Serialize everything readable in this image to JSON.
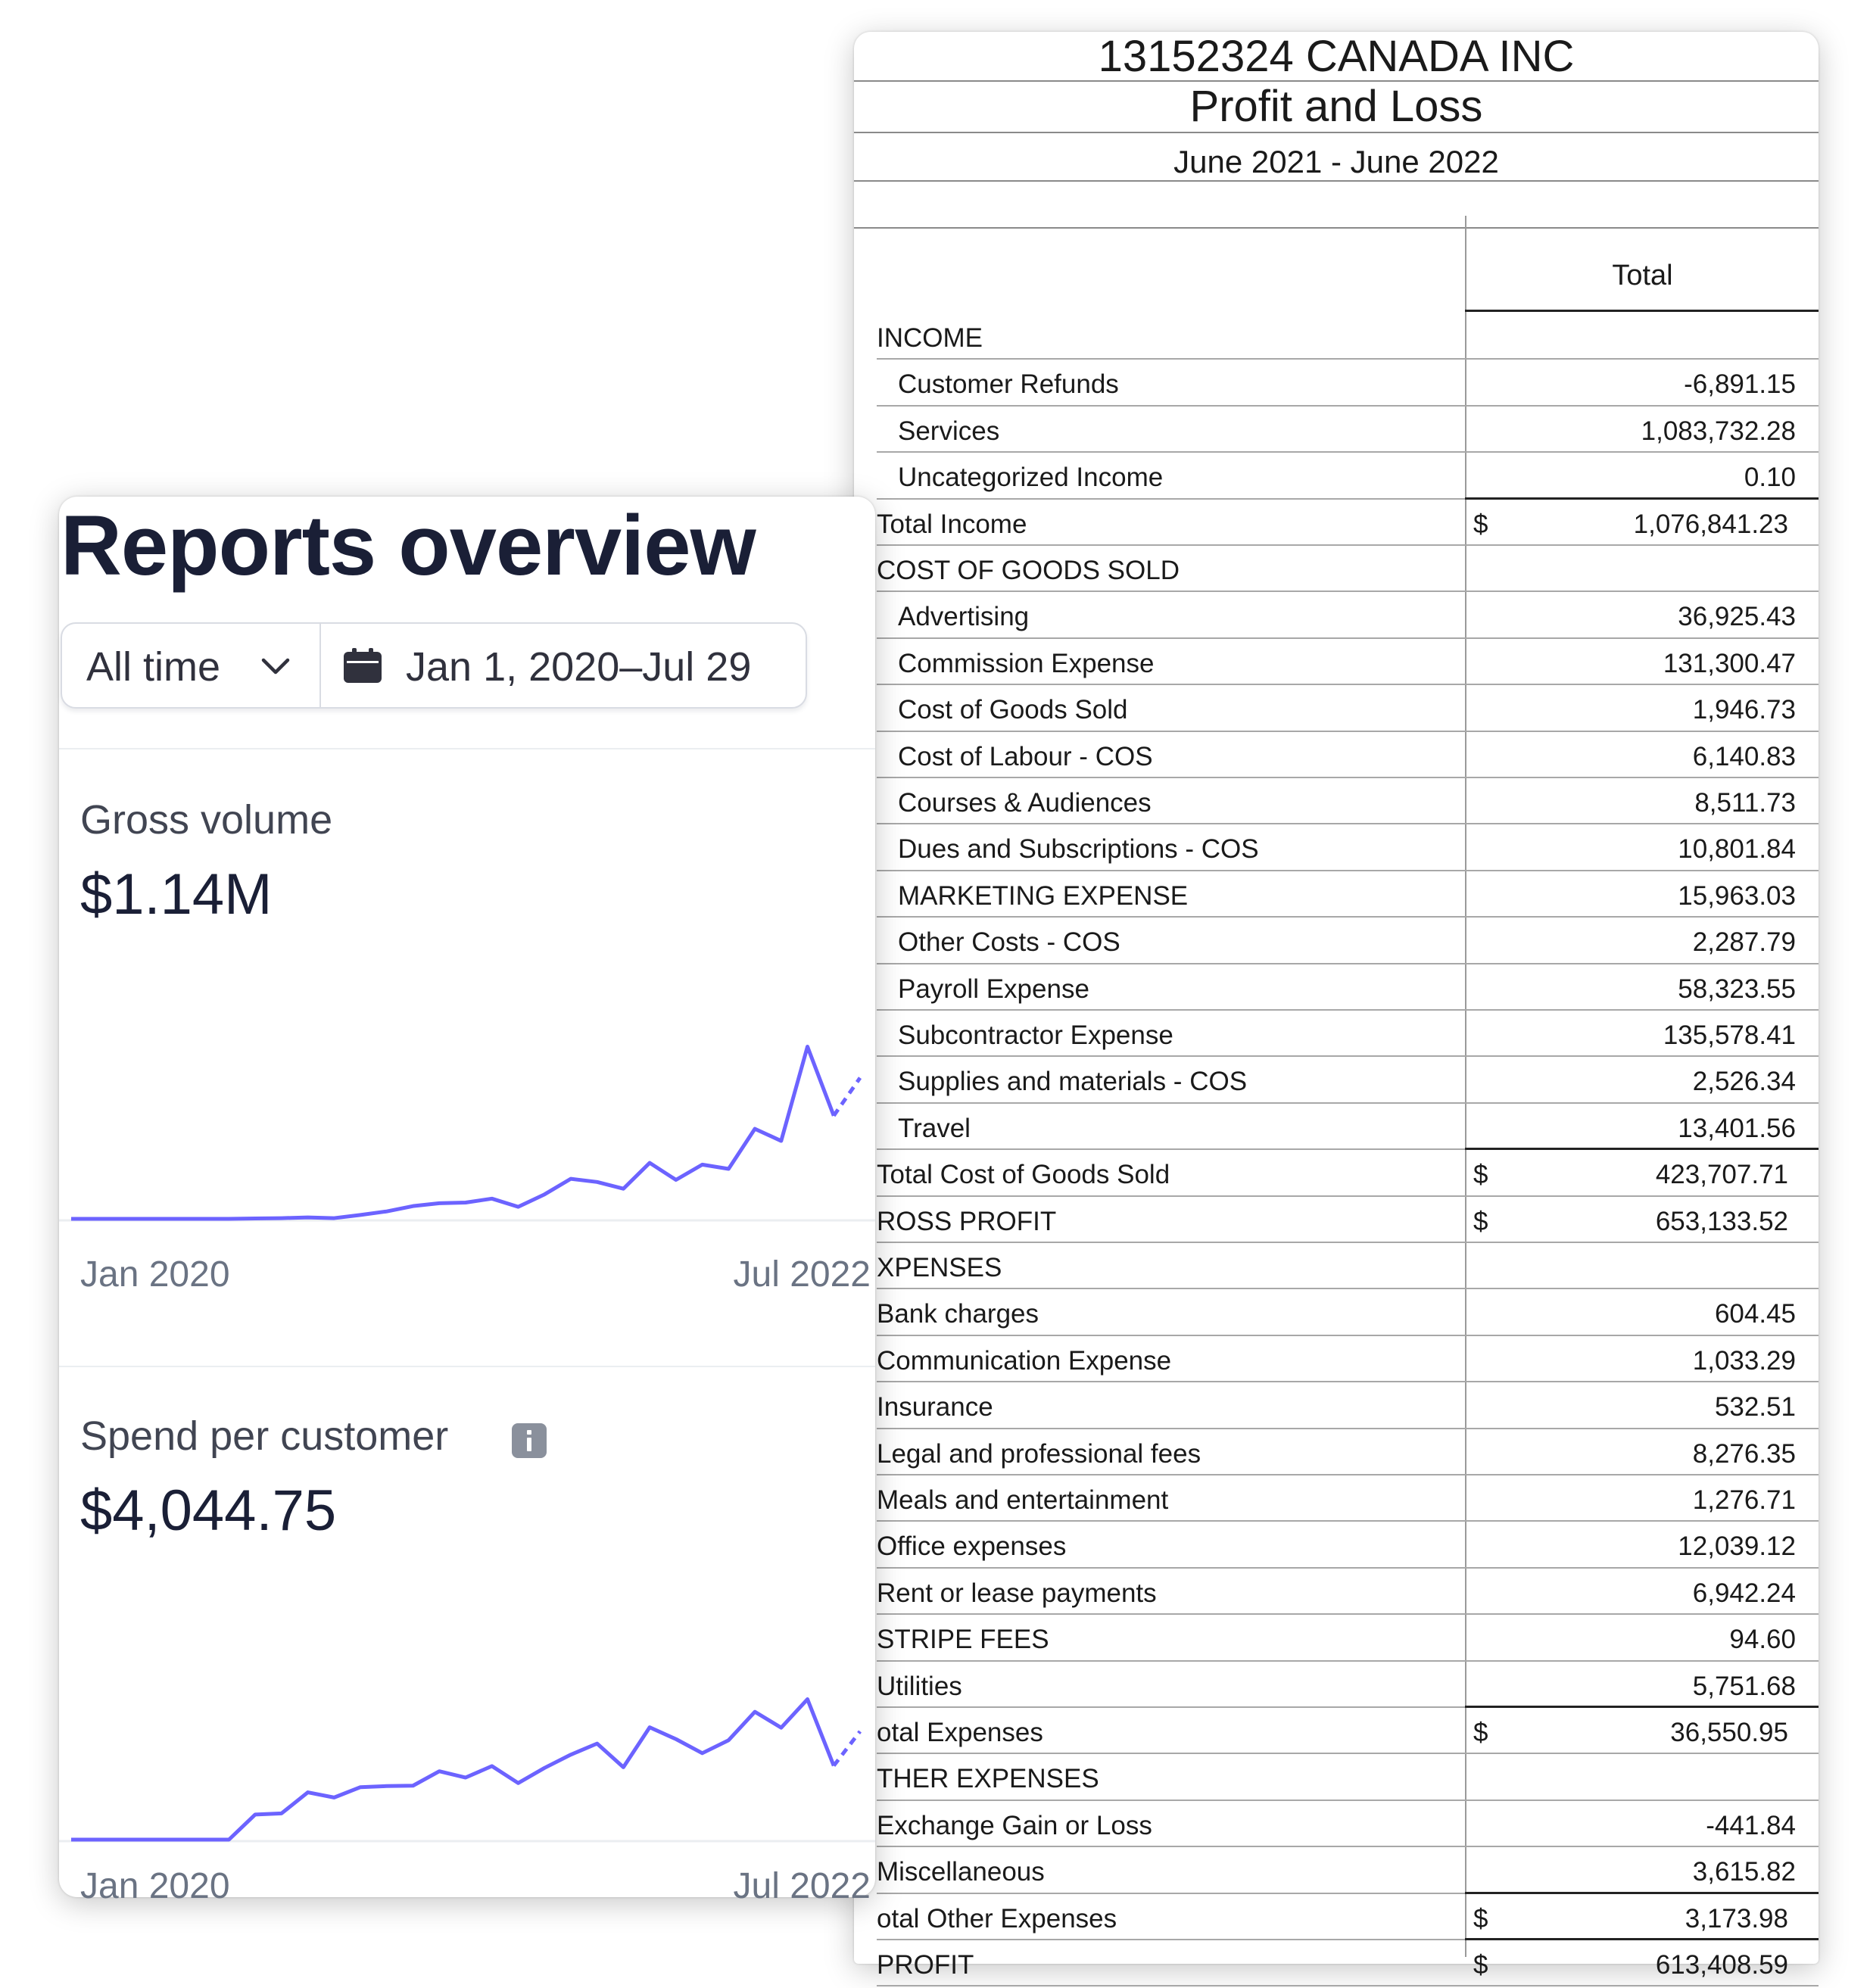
{
  "profit_and_loss": {
    "company": "13152324 CANADA INC",
    "report_title": "Profit and Loss",
    "period": "June 2021 - June 2022",
    "column_header": "Total",
    "rows": [
      {
        "label": "INCOME",
        "dollar": "",
        "amount": "",
        "kind": "section"
      },
      {
        "label": "Customer Refunds",
        "dollar": "",
        "amount": "-6,891.15",
        "kind": "indent"
      },
      {
        "label": "Services",
        "dollar": "",
        "amount": "1,083,732.28",
        "kind": "indent"
      },
      {
        "label": "Uncategorized Income",
        "dollar": "",
        "amount": "0.10",
        "kind": "indent-rule"
      },
      {
        "label": "Total Income",
        "dollar": "$",
        "amount": "1,076,841.23",
        "kind": "total"
      },
      {
        "label": "COST OF GOODS SOLD",
        "dollar": "",
        "amount": "",
        "kind": "section"
      },
      {
        "label": "Advertising",
        "dollar": "",
        "amount": "36,925.43",
        "kind": "indent"
      },
      {
        "label": "Commission Expense",
        "dollar": "",
        "amount": "131,300.47",
        "kind": "indent"
      },
      {
        "label": "Cost of Goods Sold",
        "dollar": "",
        "amount": "1,946.73",
        "kind": "indent"
      },
      {
        "label": "Cost of Labour - COS",
        "dollar": "",
        "amount": "6,140.83",
        "kind": "indent"
      },
      {
        "label": "Courses & Audiences",
        "dollar": "",
        "amount": "8,511.73",
        "kind": "indent"
      },
      {
        "label": "Dues and Subscriptions - COS",
        "dollar": "",
        "amount": "10,801.84",
        "kind": "indent"
      },
      {
        "label": "MARKETING EXPENSE",
        "dollar": "",
        "amount": "15,963.03",
        "kind": "indent"
      },
      {
        "label": "Other Costs - COS",
        "dollar": "",
        "amount": "2,287.79",
        "kind": "indent"
      },
      {
        "label": "Payroll Expense",
        "dollar": "",
        "amount": "58,323.55",
        "kind": "indent"
      },
      {
        "label": "Subcontractor Expense",
        "dollar": "",
        "amount": "135,578.41",
        "kind": "indent"
      },
      {
        "label": "Supplies and materials - COS",
        "dollar": "",
        "amount": "2,526.34",
        "kind": "indent"
      },
      {
        "label": "Travel",
        "dollar": "",
        "amount": "13,401.56",
        "kind": "indent-rule"
      },
      {
        "label": "Total Cost of Goods Sold",
        "dollar": "$",
        "amount": "423,707.71",
        "kind": "total"
      },
      {
        "label": "ROSS PROFIT",
        "dollar": "$",
        "amount": "653,133.52",
        "kind": "total"
      },
      {
        "label": "XPENSES",
        "dollar": "",
        "amount": "",
        "kind": "section"
      },
      {
        "label": "Bank charges",
        "dollar": "",
        "amount": "604.45",
        "kind": "item"
      },
      {
        "label": "Communication Expense",
        "dollar": "",
        "amount": "1,033.29",
        "kind": "item"
      },
      {
        "label": "Insurance",
        "dollar": "",
        "amount": "532.51",
        "kind": "item"
      },
      {
        "label": "Legal and professional fees",
        "dollar": "",
        "amount": "8,276.35",
        "kind": "item"
      },
      {
        "label": "Meals and entertainment",
        "dollar": "",
        "amount": "1,276.71",
        "kind": "item"
      },
      {
        "label": "Office expenses",
        "dollar": "",
        "amount": "12,039.12",
        "kind": "item"
      },
      {
        "label": "Rent or lease payments",
        "dollar": "",
        "amount": "6,942.24",
        "kind": "item"
      },
      {
        "label": "STRIPE FEES",
        "dollar": "",
        "amount": "94.60",
        "kind": "item"
      },
      {
        "label": "Utilities",
        "dollar": "",
        "amount": "5,751.68",
        "kind": "item-rule"
      },
      {
        "label": "otal Expenses",
        "dollar": "$",
        "amount": "36,550.95",
        "kind": "total"
      },
      {
        "label": "THER EXPENSES",
        "dollar": "",
        "amount": "",
        "kind": "section"
      },
      {
        "label": "Exchange Gain or Loss",
        "dollar": "",
        "amount": "-441.84",
        "kind": "item"
      },
      {
        "label": "Miscellaneous",
        "dollar": "",
        "amount": "3,615.82",
        "kind": "item-rule"
      },
      {
        "label": "otal Other Expenses",
        "dollar": "$",
        "amount": "3,173.98",
        "kind": "total-rule"
      },
      {
        "label": "PROFIT",
        "dollar": "$",
        "amount": "613,408.59",
        "kind": "total-last"
      }
    ]
  },
  "reports": {
    "title": "Reports overview",
    "range_select": "All time",
    "date_range": "Jan 1, 2020–Jul 29",
    "icons": {
      "range": "chevron-down-icon",
      "date": "calendar-icon",
      "info": "info-icon"
    },
    "accent_color": "#6c63ff",
    "metrics": [
      {
        "label": "Gross volume",
        "value": "$1.14M",
        "x_start": "Jan 2020",
        "x_end": "Jul 2022",
        "has_info": false
      },
      {
        "label": "Spend per customer",
        "value": "$4,044.75",
        "x_start": "Jan 2020",
        "x_end": "Jul 2022",
        "has_info": true
      }
    ]
  },
  "chart_data": [
    {
      "type": "line",
      "title": "Gross volume",
      "x_range": [
        "Jan 2020",
        "Jul 2022"
      ],
      "series": [
        {
          "values": [
            0,
            0,
            0,
            0,
            0,
            0,
            0,
            0.2,
            0.4,
            0.8,
            0.4,
            2.2,
            4.2,
            7.2,
            8.8,
            9.2,
            11.4,
            6.8,
            13.8,
            22.6,
            20.8,
            17.0,
            31.6,
            22.0,
            30.6,
            28.2,
            50.8,
            44.0,
            97.2,
            58.2,
            79.6
          ],
          "projected_from_index": 29
        }
      ]
    },
    {
      "type": "line",
      "title": "Spend per customer",
      "x_range": [
        "Jan 2020",
        "Jul 2022"
      ],
      "series": [
        {
          "values": [
            0,
            0,
            0,
            0,
            0,
            0,
            0,
            13.6,
            14.2,
            25.6,
            22.8,
            28.4,
            29.0,
            29.2,
            37.0,
            33.6,
            39.8,
            30.6,
            38.8,
            46.0,
            52.0,
            39.2,
            60.8,
            54.4,
            46.8,
            53.8,
            69.2,
            60.6,
            76.0,
            40.0,
            58.6
          ],
          "projected_from_index": 29
        }
      ]
    }
  ]
}
